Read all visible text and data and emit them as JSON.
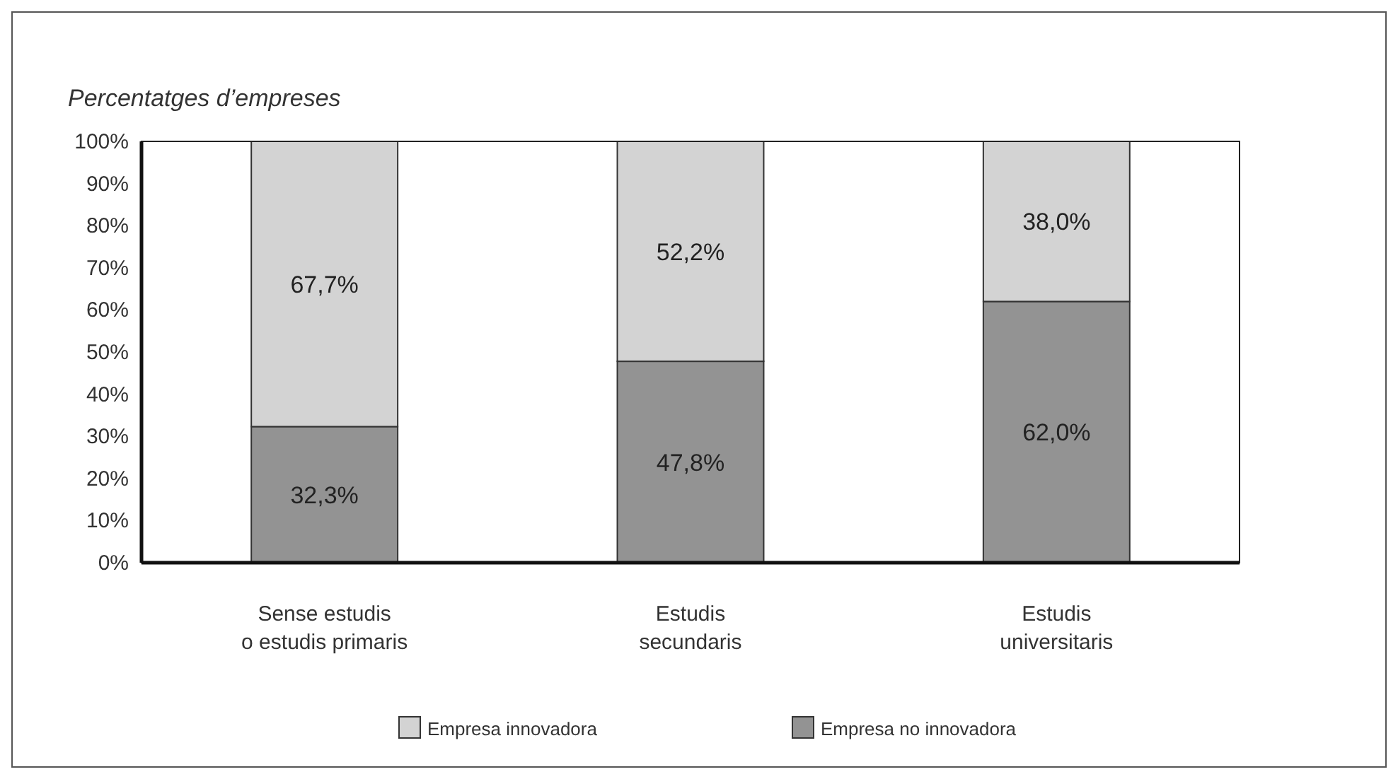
{
  "chart_data": {
    "type": "bar",
    "stacked": true,
    "title": "Percentatges d’empreses",
    "categories": [
      "Sense estudis\no estudis primaris",
      "Estudis\nsecundaris",
      "Estudis\nuniversitaris"
    ],
    "series": [
      {
        "name": "Empresa no innovadora",
        "color": "#939393",
        "values": [
          32.3,
          47.8,
          62.0
        ],
        "value_labels": [
          "32,3%",
          "47,8%",
          "62,0%"
        ]
      },
      {
        "name": "Empresa innovadora",
        "color": "#d3d3d3",
        "values": [
          67.7,
          52.2,
          38.0
        ],
        "value_labels": [
          "67,7%",
          "52,2%",
          "38,0%"
        ]
      }
    ],
    "ylim": [
      0,
      100
    ],
    "yticks": [
      {
        "value": 0,
        "label": "0%"
      },
      {
        "value": 10,
        "label": "10%"
      },
      {
        "value": 20,
        "label": "20%"
      },
      {
        "value": 30,
        "label": "30%"
      },
      {
        "value": 40,
        "label": "40%"
      },
      {
        "value": 50,
        "label": "50%"
      },
      {
        "value": 60,
        "label": "60%"
      },
      {
        "value": 70,
        "label": "70%"
      },
      {
        "value": 80,
        "label": "80%"
      },
      {
        "value": 90,
        "label": "90%"
      },
      {
        "value": 100,
        "label": "100%"
      }
    ],
    "legend": "bottom",
    "grid": false
  }
}
